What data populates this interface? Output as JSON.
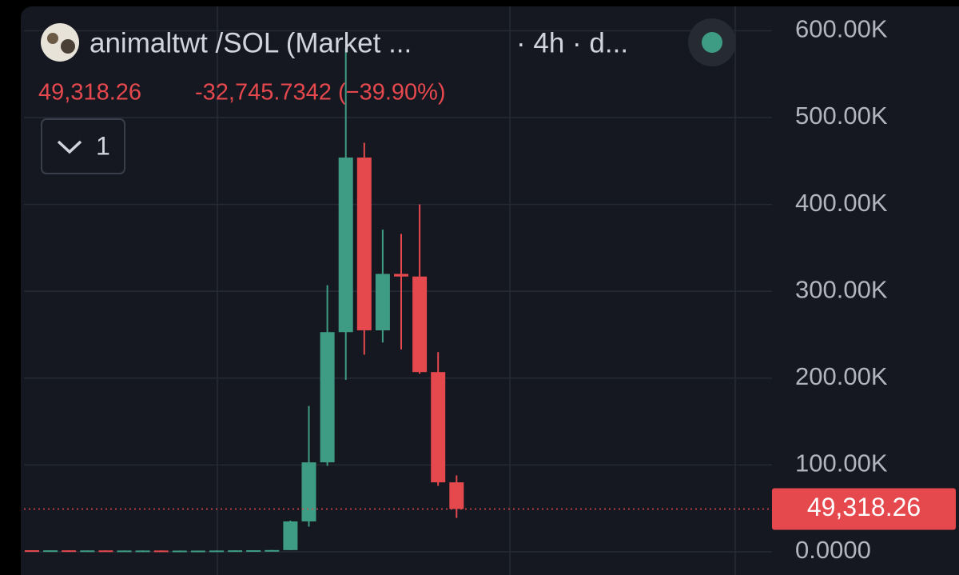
{
  "header": {
    "symbol": "animaltwt /SOL (Market ...",
    "interval": "· 4h · d...",
    "change": "-32,745.7342 (−39.90%)",
    "indicators": "1"
  },
  "chart_data": {
    "type": "candlestick",
    "open": [
      1800,
      1700,
      1700,
      1600,
      1600,
      1500,
      1500,
      1500,
      1400,
      1400,
      1400,
      1500,
      1700,
      1800,
      2000,
      35000,
      103000,
      253000,
      454000,
      255000,
      320000,
      317000,
      207000,
      80000
    ],
    "high": [
      1900,
      1800,
      1800,
      1700,
      1700,
      1600,
      1600,
      1600,
      1500,
      1500,
      1600,
      1800,
      1900,
      2100,
      36000,
      168000,
      307000,
      580000,
      471000,
      371000,
      366000,
      400000,
      230000,
      88000
    ],
    "low": [
      1600,
      1600,
      1500,
      1500,
      1400,
      1400,
      1400,
      1300,
      1300,
      1300,
      1300,
      1400,
      1600,
      1700,
      1800,
      29000,
      99000,
      198000,
      227000,
      241000,
      233000,
      205000,
      76000,
      39000
    ],
    "close": [
      1700,
      1700,
      1600,
      1600,
      1500,
      1500,
      1500,
      1400,
      1400,
      1400,
      1500,
      1700,
      1800,
      2000,
      35000,
      103000,
      253000,
      454000,
      255000,
      320000,
      317000,
      207000,
      80000,
      49318.26
    ],
    "up_color": "#3f9c84",
    "down_color": "#e5484d",
    "ylim": [
      -26700,
      635400
    ],
    "yticks": [
      {
        "value": 0,
        "label": "0.0000"
      },
      {
        "value": 100000,
        "label": "100.00K"
      },
      {
        "value": 200000,
        "label": "200.00K"
      },
      {
        "value": 300000,
        "label": "300.00K"
      },
      {
        "value": 400000,
        "label": "400.00K"
      },
      {
        "value": 500000,
        "label": "500.00K"
      },
      {
        "value": 600000,
        "label": "600.00K"
      }
    ],
    "grid": true,
    "last_price": {
      "value": 49318.26,
      "label": "49,318.26"
    }
  }
}
